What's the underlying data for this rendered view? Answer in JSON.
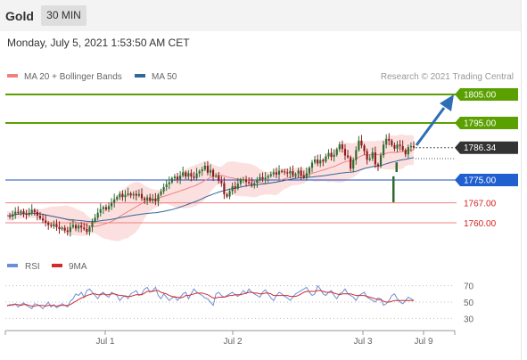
{
  "header": {
    "asset": "Gold",
    "timeframe": "30 MIN",
    "datetime": "Monday, July 5, 2021 1:53:50 AM CET"
  },
  "legend": {
    "ma20_bb": "MA 20 + Bollinger Bands",
    "ma50": "MA 50",
    "credit": "Research © 2021 Trading Central"
  },
  "rsi_legend": {
    "rsi": "RSI",
    "ma9": "9MA"
  },
  "colors": {
    "green": "#5aa000",
    "blue": "#1f4fbf",
    "pink": "#f08080",
    "ma50": "#336699",
    "candle_up": "#2e6b2e",
    "candle_down": "#8b1a1a",
    "bb_fill": "#fbd5d5",
    "rsi_line": "#6a8fd8",
    "rsi_ma": "#d42a2a",
    "arrow": "#2f6db5",
    "current": "#333333"
  },
  "chart_data": {
    "type": "candlestick",
    "x_ticks": [
      "Jul 1",
      "Jul 2",
      "Jul 3",
      "Jul 9"
    ],
    "y_range": [
      1755,
      1808
    ],
    "levels": [
      {
        "label": "1805.00",
        "value": 1805,
        "kind": "resistance"
      },
      {
        "label": "1795.00",
        "value": 1795,
        "kind": "resistance"
      },
      {
        "label": "1786.34",
        "value": 1786.34,
        "kind": "current"
      },
      {
        "label": "1775.00",
        "value": 1775,
        "kind": "pivot"
      },
      {
        "label": "1767.00",
        "value": 1767,
        "kind": "support"
      },
      {
        "label": "1760.00",
        "value": 1760,
        "kind": "support"
      }
    ],
    "close": [
      1762.5,
      1762.2,
      1763,
      1763.8,
      1763.5,
      1764,
      1763.2,
      1762.8,
      1763.5,
      1764.5,
      1763.8,
      1762.5,
      1761.5,
      1760.8,
      1760,
      1759.2,
      1758.8,
      1759.5,
      1758.5,
      1757.8,
      1758.2,
      1757.3,
      1756.8,
      1758.5,
      1759.2,
      1758,
      1759,
      1758.3,
      1757.8,
      1756.8,
      1758.5,
      1760.5,
      1761.8,
      1763.5,
      1764.8,
      1765.5,
      1764.7,
      1765.8,
      1767,
      1768.2,
      1769,
      1770.1,
      1769,
      1769.8,
      1770.3,
      1769.6,
      1770.1,
      1769.5,
      1770.1,
      1768.6,
      1767.9,
      1768.9,
      1767.7,
      1768.4,
      1767.5,
      1769.8,
      1771,
      1772.5,
      1773.5,
      1774.2,
      1775.6,
      1776.2,
      1775.2,
      1776.5,
      1777.7,
      1776.2,
      1777.4,
      1776.2,
      1775.7,
      1777.3,
      1778.1,
      1778.7,
      1780,
      1777.6,
      1778.5,
      1776.3,
      1776.5,
      1774.7,
      1773.9,
      1770,
      1769.2,
      1771.1,
      1772.8,
      1772,
      1773.7,
      1775.2,
      1775.2,
      1774.3,
      1773.9,
      1773.3,
      1773.9,
      1775.1,
      1776,
      1775.3,
      1775.8,
      1776.4,
      1777,
      1777.7,
      1776.9,
      1778.2,
      1778,
      1777.7,
      1777.3,
      1778.1,
      1776.5,
      1777.1,
      1778.3,
      1776.6,
      1775.9,
      1777.4,
      1779.3,
      1781.1,
      1782.2,
      1780.8,
      1782,
      1781.5,
      1783.3,
      1784.5,
      1783.1,
      1783.8,
      1785.8,
      1787.5,
      1785.9,
      1783.6,
      1783,
      1779,
      1782,
      1785.5,
      1788.8,
      1787.1,
      1785.1,
      1782.1,
      1782.6,
      1784.7,
      1780.5,
      1779.8,
      1783.7,
      1787.4,
      1789.4,
      1788.8,
      1787.2,
      1786,
      1787.4,
      1786.9,
      1785.5,
      1784,
      1786.5,
      1786.9,
      1786.34
    ],
    "rsi": {
      "ticks": [
        "70",
        "50",
        "30"
      ],
      "rsi": [
        45,
        47,
        46,
        48,
        44,
        47,
        49,
        46,
        44,
        42,
        48,
        47,
        45,
        42,
        46,
        50,
        44,
        47,
        43,
        45,
        48,
        46,
        44,
        51,
        54,
        60,
        58,
        62,
        56,
        64,
        66,
        62,
        58,
        54,
        60,
        62,
        58,
        56,
        62,
        60,
        58,
        52,
        56,
        58,
        54,
        60,
        62,
        64,
        58,
        60,
        66,
        68,
        62,
        64,
        68,
        58,
        54,
        60,
        56,
        52,
        55,
        57,
        52,
        56,
        60,
        62,
        54,
        60,
        66,
        62,
        60,
        58,
        55,
        54,
        50,
        46,
        60,
        62,
        58,
        56,
        58,
        60,
        62,
        59,
        57,
        60,
        64,
        60,
        66,
        62,
        60,
        58,
        56,
        62,
        65,
        60,
        55,
        52,
        58,
        62,
        60,
        57,
        55,
        52,
        56,
        60,
        62,
        64,
        66,
        68,
        62,
        58,
        60,
        70,
        66,
        60,
        58,
        62,
        64,
        58,
        54,
        60,
        62,
        66,
        60,
        58,
        56,
        52,
        58,
        60,
        62,
        56,
        54,
        52,
        50,
        55,
        54,
        46,
        48,
        52,
        58,
        60,
        54,
        50,
        48,
        52,
        56,
        54,
        52
      ],
      "ma9": [
        46,
        46,
        47,
        47,
        47,
        46,
        47,
        47,
        46,
        45,
        45,
        46,
        46,
        46,
        45,
        46,
        46,
        46,
        45,
        46,
        46,
        46,
        46,
        47,
        49,
        51,
        53,
        55,
        56,
        58,
        59,
        60,
        60,
        59,
        59,
        60,
        59,
        59,
        60,
        60,
        59,
        58,
        58,
        57,
        57,
        57,
        58,
        59,
        59,
        59,
        61,
        63,
        63,
        63,
        64,
        64,
        62,
        61,
        60,
        58,
        57,
        56,
        56,
        55,
        56,
        58,
        58,
        59,
        60,
        61,
        61,
        61,
        60,
        59,
        57,
        55,
        55,
        56,
        56,
        56,
        57,
        58,
        58,
        59,
        59,
        59,
        60,
        61,
        62,
        62,
        61,
        61,
        60,
        60,
        61,
        61,
        60,
        58,
        58,
        58,
        58,
        58,
        58,
        57,
        57,
        57,
        58,
        60,
        62,
        63,
        63,
        63,
        63,
        64,
        64,
        63,
        62,
        62,
        62,
        61,
        60,
        59,
        60,
        60,
        60,
        60,
        59,
        58,
        58,
        58,
        58,
        57,
        56,
        55,
        54,
        53,
        53,
        51,
        50,
        50,
        51,
        52,
        52,
        52,
        52,
        52,
        52,
        52,
        52
      ]
    }
  }
}
